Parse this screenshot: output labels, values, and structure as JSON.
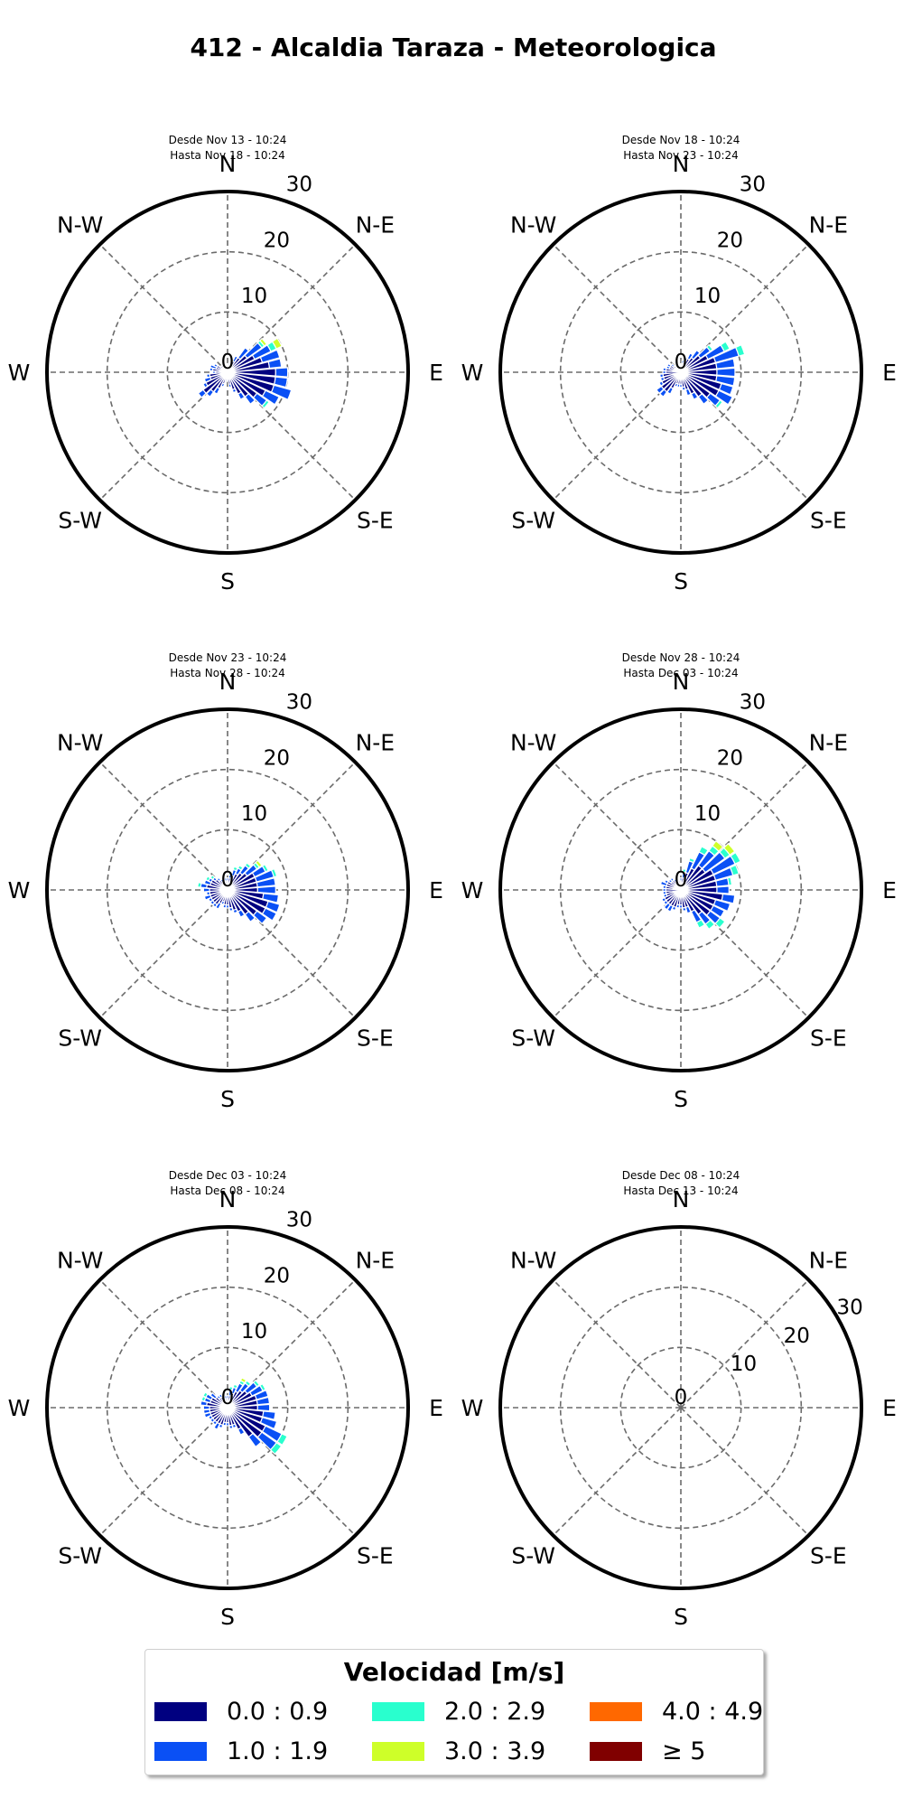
{
  "figure": {
    "title": "412 - Alcaldia Taraza - Meteorologica"
  },
  "chart_data": [
    {
      "type": "windrose",
      "subtitle_line1": "Desde Nov 13 - 10:24",
      "subtitle_line2": "Hasta Nov 18 - 10:24",
      "directions": [
        "N",
        "N-E",
        "E",
        "S-E",
        "S",
        "S-W",
        "W",
        "N-W"
      ],
      "radial_ticks": [
        "0",
        "10",
        "20",
        "30"
      ],
      "rmax": 30,
      "sectors_deg": [
        0,
        10,
        20,
        30,
        40,
        50,
        60,
        70,
        80,
        90,
        100,
        110,
        120,
        130,
        140,
        150,
        160,
        170,
        180,
        190,
        200,
        210,
        220,
        230,
        240,
        250,
        260,
        270,
        280,
        290,
        300,
        310,
        320,
        330,
        340,
        350
      ],
      "stacks": [
        [
          1,
          0
        ],
        [
          1,
          0.5
        ],
        [
          1.5,
          0.5
        ],
        [
          2,
          1
        ],
        [
          3,
          2
        ],
        [
          4,
          3,
          0.5,
          0.5
        ],
        [
          5,
          3,
          1,
          1
        ],
        [
          6,
          3
        ],
        [
          7,
          2
        ],
        [
          8,
          2
        ],
        [
          8,
          2
        ],
        [
          8,
          3
        ],
        [
          7,
          2.5
        ],
        [
          6,
          2,
          0.5
        ],
        [
          5,
          1.5
        ],
        [
          4,
          1
        ],
        [
          3,
          0.5
        ],
        [
          2,
          0.5
        ],
        [
          1.5,
          0
        ],
        [
          1.5,
          0
        ],
        [
          2,
          0.5
        ],
        [
          3,
          1
        ],
        [
          4,
          1
        ],
        [
          5,
          1
        ],
        [
          4,
          0.5
        ],
        [
          3,
          1
        ],
        [
          3,
          0.5
        ],
        [
          2,
          0.5
        ],
        [
          2.5,
          0.5
        ],
        [
          2,
          1
        ],
        [
          2,
          0.5
        ],
        [
          1.5,
          0
        ],
        [
          1.5,
          0
        ],
        [
          1,
          0
        ],
        [
          1,
          0
        ],
        [
          1,
          0
        ]
      ]
    },
    {
      "type": "windrose",
      "subtitle_line1": "Desde Nov 18 - 10:24",
      "subtitle_line2": "Hasta Nov 23 - 10:24",
      "directions": [
        "N",
        "N-E",
        "E",
        "S-E",
        "S",
        "S-W",
        "W",
        "N-W"
      ],
      "radial_ticks": [
        "0",
        "10",
        "20",
        "30"
      ],
      "rmax": 30,
      "sectors_deg": [
        0,
        10,
        20,
        30,
        40,
        50,
        60,
        70,
        80,
        90,
        100,
        110,
        120,
        130,
        140,
        150,
        160,
        170,
        180,
        190,
        200,
        210,
        220,
        230,
        240,
        250,
        260,
        270,
        280,
        290,
        300,
        310,
        320,
        330,
        340,
        350
      ],
      "stacks": [
        [
          1,
          0
        ],
        [
          1.5,
          0.5
        ],
        [
          2,
          0.5
        ],
        [
          2.5,
          1
        ],
        [
          3,
          1.5
        ],
        [
          4,
          2,
          0.5
        ],
        [
          5,
          3,
          1
        ],
        [
          6,
          4,
          1
        ],
        [
          6,
          3
        ],
        [
          6,
          3
        ],
        [
          6,
          3
        ],
        [
          7,
          2
        ],
        [
          7,
          2.5
        ],
        [
          6,
          2,
          0.5
        ],
        [
          5,
          1.5
        ],
        [
          4,
          1
        ],
        [
          3,
          1
        ],
        [
          2.5,
          0.5
        ],
        [
          2,
          0.5
        ],
        [
          2,
          0.5
        ],
        [
          2,
          0.5
        ],
        [
          3,
          1
        ],
        [
          4,
          1
        ],
        [
          4,
          1
        ],
        [
          3.5,
          0.5
        ],
        [
          3,
          0.5
        ],
        [
          3,
          0.5
        ],
        [
          2.5,
          0.5
        ],
        [
          2.5,
          0.5
        ],
        [
          2,
          0.5
        ],
        [
          2,
          0.5
        ],
        [
          1.5,
          0.5
        ],
        [
          1,
          0
        ],
        [
          1,
          0
        ],
        [
          1,
          0
        ],
        [
          1,
          0
        ]
      ]
    },
    {
      "type": "windrose",
      "subtitle_line1": "Desde Nov 23 - 10:24",
      "subtitle_line2": "Hasta Nov 28 - 10:24",
      "directions": [
        "N",
        "N-E",
        "E",
        "S-E",
        "S",
        "S-W",
        "W",
        "N-W"
      ],
      "radial_ticks": [
        "0",
        "10",
        "20",
        "30"
      ],
      "rmax": 30,
      "sectors_deg": [
        0,
        10,
        20,
        30,
        40,
        50,
        60,
        70,
        80,
        90,
        100,
        110,
        120,
        130,
        140,
        150,
        160,
        170,
        180,
        190,
        200,
        210,
        220,
        230,
        240,
        250,
        260,
        270,
        280,
        290,
        300,
        310,
        320,
        330,
        340,
        350
      ],
      "stacks": [
        [
          1.5,
          0.5
        ],
        [
          2,
          0.5,
          0.5
        ],
        [
          2.5,
          1,
          0.5
        ],
        [
          3,
          1,
          0.5
        ],
        [
          3.5,
          1.5,
          0.5
        ],
        [
          4,
          2,
          0.5,
          0.5
        ],
        [
          5,
          2,
          0.5
        ],
        [
          5,
          3,
          0.5
        ],
        [
          5,
          3
        ],
        [
          5,
          3
        ],
        [
          6,
          2.5
        ],
        [
          7,
          2
        ],
        [
          7,
          2
        ],
        [
          6,
          2
        ],
        [
          5,
          1.5
        ],
        [
          4,
          1
        ],
        [
          3.5,
          0.5
        ],
        [
          3,
          0.5
        ],
        [
          2.5,
          0.5
        ],
        [
          2.5,
          0.5
        ],
        [
          2,
          0.5
        ],
        [
          2.5,
          1
        ],
        [
          3,
          0.5
        ],
        [
          3,
          0.5
        ],
        [
          3,
          0.5
        ],
        [
          3,
          1
        ],
        [
          3,
          0.5
        ],
        [
          3,
          1
        ],
        [
          3.5,
          1,
          0.5
        ],
        [
          3,
          1
        ],
        [
          3,
          0.5,
          0.5
        ],
        [
          2.5,
          0.5,
          0.5
        ],
        [
          2,
          0.5
        ],
        [
          1.5,
          0.5
        ],
        [
          1.5,
          0.5
        ],
        [
          1.5,
          0.5
        ]
      ]
    },
    {
      "type": "windrose",
      "subtitle_line1": "Desde Nov 28 - 10:24",
      "subtitle_line2": "Hasta Dec 03 - 10:24",
      "directions": [
        "N",
        "N-E",
        "E",
        "S-E",
        "S",
        "S-W",
        "W",
        "N-W"
      ],
      "radial_ticks": [
        "0",
        "10",
        "20",
        "30"
      ],
      "rmax": 30,
      "sectors_deg": [
        0,
        10,
        20,
        30,
        40,
        50,
        60,
        70,
        80,
        90,
        100,
        110,
        120,
        130,
        140,
        150,
        160,
        170,
        180,
        190,
        200,
        210,
        220,
        230,
        240,
        250,
        260,
        270,
        280,
        290,
        300,
        310,
        320,
        330,
        340,
        350
      ],
      "stacks": [
        [
          1.5,
          0.5
        ],
        [
          2,
          1,
          0.5
        ],
        [
          3,
          2,
          0.5
        ],
        [
          4,
          3,
          1
        ],
        [
          5,
          3,
          1,
          1
        ],
        [
          5,
          4,
          1,
          1
        ],
        [
          6,
          4,
          1
        ],
        [
          6,
          3,
          1
        ],
        [
          6,
          2,
          0.5
        ],
        [
          6,
          2
        ],
        [
          7,
          2
        ],
        [
          6,
          2.5
        ],
        [
          6,
          2
        ],
        [
          6,
          2,
          1
        ],
        [
          5,
          2,
          1
        ],
        [
          4,
          2,
          1
        ],
        [
          3,
          1
        ],
        [
          3,
          0.5
        ],
        [
          2.5,
          0.5
        ],
        [
          2.5,
          0.5
        ],
        [
          3,
          0.5
        ],
        [
          3,
          1
        ],
        [
          3,
          1
        ],
        [
          3,
          0.5
        ],
        [
          3,
          0.5
        ],
        [
          2.5,
          0.5
        ],
        [
          2.5,
          0.5
        ],
        [
          2.5,
          0.5
        ],
        [
          2.5,
          0.5
        ],
        [
          2.5,
          1
        ],
        [
          2.5,
          0.5
        ],
        [
          2,
          0.5
        ],
        [
          2,
          0.5
        ],
        [
          1.5,
          0.5
        ],
        [
          1.5,
          0
        ],
        [
          1.5,
          0
        ]
      ]
    },
    {
      "type": "windrose",
      "subtitle_line1": "Desde Dec 03 - 10:24",
      "subtitle_line2": "Hasta Dec 08 - 10:24",
      "directions": [
        "N",
        "N-E",
        "E",
        "S-E",
        "S",
        "S-W",
        "W",
        "N-W"
      ],
      "radial_ticks": [
        "0",
        "10",
        "20",
        "30"
      ],
      "rmax": 30,
      "sectors_deg": [
        0,
        10,
        20,
        30,
        40,
        50,
        60,
        70,
        80,
        90,
        100,
        110,
        120,
        130,
        140,
        150,
        160,
        170,
        180,
        190,
        200,
        210,
        220,
        230,
        240,
        250,
        260,
        270,
        280,
        290,
        300,
        310,
        320,
        330,
        340,
        350
      ],
      "stacks": [
        [
          1.5,
          0.5
        ],
        [
          2,
          1,
          0.5
        ],
        [
          2.5,
          1,
          0.5
        ],
        [
          3,
          1.5,
          0.5,
          0.5
        ],
        [
          3.5,
          1.5,
          0.5
        ],
        [
          4,
          2,
          0.5
        ],
        [
          4.5,
          2,
          0.5
        ],
        [
          5,
          2
        ],
        [
          5,
          2
        ],
        [
          5,
          2
        ],
        [
          6,
          2
        ],
        [
          6,
          2.5
        ],
        [
          7,
          3,
          1
        ],
        [
          7,
          3,
          1
        ],
        [
          6,
          2
        ],
        [
          4,
          1
        ],
        [
          3,
          0.5
        ],
        [
          3,
          0.5
        ],
        [
          2.5,
          0.5
        ],
        [
          2.5,
          0.5
        ],
        [
          3,
          0.5
        ],
        [
          3,
          1
        ],
        [
          3,
          0.5
        ],
        [
          3,
          0.5
        ],
        [
          3,
          0.5
        ],
        [
          3,
          1
        ],
        [
          3,
          1
        ],
        [
          3,
          1
        ],
        [
          3.5,
          1
        ],
        [
          3,
          1,
          0.5
        ],
        [
          3,
          1,
          0.5
        ],
        [
          2.5,
          1
        ],
        [
          2,
          0.5
        ],
        [
          2,
          0.5
        ],
        [
          1.5,
          0.5
        ],
        [
          1.5,
          0.5
        ]
      ]
    },
    {
      "type": "windrose",
      "subtitle_line1": "Desde Dec 08 - 10:24",
      "subtitle_line2": "Hasta Dec 13 - 10:24",
      "directions": [
        "N",
        "N-E",
        "E",
        "S-E",
        "S",
        "S-W",
        "W",
        "N-W"
      ],
      "radial_ticks": [
        "0",
        "10",
        "20",
        "30"
      ],
      "rmax": 30,
      "sectors_deg": [],
      "stacks": []
    }
  ],
  "legend": {
    "title": "Velocidad [m/s]",
    "items": [
      {
        "label": "0.0 : 0.9",
        "color": "#000080"
      },
      {
        "label": "1.0 : 1.9",
        "color": "#0a50f5"
      },
      {
        "label": "2.0 : 2.9",
        "color": "#29ffce"
      },
      {
        "label": "3.0 : 3.9",
        "color": "#ceff29"
      },
      {
        "label": "4.0 : 4.9",
        "color": "#ff6800"
      },
      {
        "label": "≥  5",
        "color": "#800000"
      }
    ]
  }
}
